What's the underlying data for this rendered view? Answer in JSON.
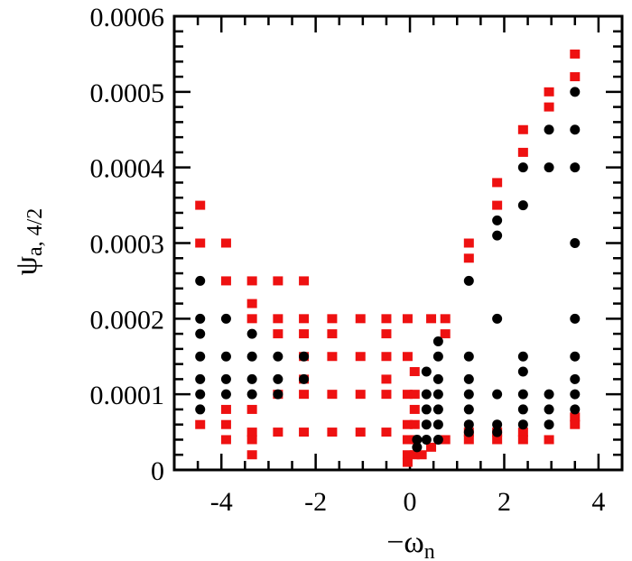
{
  "chart_data": {
    "type": "scatter",
    "xlabel": "−ω",
    "xlabel_sub": "n",
    "ylabel": "ψ",
    "ylabel_sub": "a, 4/2",
    "xlim": [
      -5,
      4.5
    ],
    "ylim": [
      0,
      0.0006
    ],
    "x_ticks": [
      -4,
      -2,
      0,
      2,
      4
    ],
    "x_tick_labels": [
      "-4",
      "-2",
      "0",
      "2",
      "4"
    ],
    "y_ticks": [
      0,
      0.0001,
      0.0002,
      0.0003,
      0.0004,
      0.0005,
      0.0006
    ],
    "y_tick_labels": [
      "0",
      "0.0001",
      "0.0002",
      "0.0003",
      "0.0004",
      "0.0005",
      "0.0006"
    ],
    "grid": false,
    "series": [
      {
        "marker": "circle",
        "color": "#000000",
        "points": [
          [
            -4.45,
            0.00025
          ],
          [
            -4.45,
            0.0002
          ],
          [
            -4.45,
            0.00018
          ],
          [
            -4.45,
            0.00015
          ],
          [
            -4.45,
            0.00012
          ],
          [
            -4.45,
            0.0001
          ],
          [
            -4.45,
            8e-05
          ],
          [
            -3.9,
            0.0002
          ],
          [
            -3.9,
            0.00015
          ],
          [
            -3.9,
            0.00012
          ],
          [
            -3.9,
            0.0001
          ],
          [
            -3.35,
            0.00018
          ],
          [
            -3.35,
            0.00015
          ],
          [
            -3.35,
            0.00012
          ],
          [
            -3.35,
            0.0001
          ],
          [
            -2.8,
            0.00015
          ],
          [
            -2.8,
            0.00012
          ],
          [
            -2.8,
            0.0001
          ],
          [
            -2.25,
            0.00015
          ],
          [
            -2.25,
            0.00012
          ],
          [
            0.15,
            4e-05
          ],
          [
            0.15,
            3e-05
          ],
          [
            0.35,
            0.00013
          ],
          [
            0.35,
            0.0001
          ],
          [
            0.35,
            8e-05
          ],
          [
            0.35,
            6e-05
          ],
          [
            0.35,
            4e-05
          ],
          [
            0.6,
            0.00017
          ],
          [
            0.6,
            0.00015
          ],
          [
            0.6,
            0.00012
          ],
          [
            0.6,
            0.0001
          ],
          [
            0.6,
            8e-05
          ],
          [
            0.6,
            6e-05
          ],
          [
            0.6,
            4e-05
          ],
          [
            1.25,
            0.00025
          ],
          [
            1.25,
            0.00015
          ],
          [
            1.25,
            0.00012
          ],
          [
            1.25,
            0.0001
          ],
          [
            1.25,
            8e-05
          ],
          [
            1.25,
            6e-05
          ],
          [
            1.25,
            5e-05
          ],
          [
            1.85,
            0.00033
          ],
          [
            1.85,
            0.00031
          ],
          [
            1.85,
            0.0002
          ],
          [
            1.85,
            0.0001
          ],
          [
            1.85,
            6e-05
          ],
          [
            1.85,
            5e-05
          ],
          [
            2.4,
            0.0004
          ],
          [
            2.4,
            0.00035
          ],
          [
            2.4,
            0.00015
          ],
          [
            2.4,
            0.00013
          ],
          [
            2.4,
            0.0001
          ],
          [
            2.4,
            8e-05
          ],
          [
            2.4,
            6e-05
          ],
          [
            2.95,
            0.00045
          ],
          [
            2.95,
            0.0004
          ],
          [
            2.95,
            0.0001
          ],
          [
            2.95,
            8e-05
          ],
          [
            2.95,
            6e-05
          ],
          [
            3.5,
            0.0005
          ],
          [
            3.5,
            0.00045
          ],
          [
            3.5,
            0.0004
          ],
          [
            3.5,
            0.0003
          ],
          [
            3.5,
            0.0002
          ],
          [
            3.5,
            0.00015
          ],
          [
            3.5,
            0.00012
          ],
          [
            3.5,
            0.0001
          ],
          [
            3.5,
            8e-05
          ]
        ]
      },
      {
        "marker": "square",
        "color": "#ee1111",
        "points": [
          [
            -4.45,
            0.00035
          ],
          [
            -4.45,
            0.0003
          ],
          [
            -4.45,
            6e-05
          ],
          [
            -3.9,
            0.0003
          ],
          [
            -3.9,
            0.00025
          ],
          [
            -3.9,
            8e-05
          ],
          [
            -3.9,
            6e-05
          ],
          [
            -3.9,
            4e-05
          ],
          [
            -3.35,
            0.00025
          ],
          [
            -3.35,
            0.00022
          ],
          [
            -3.35,
            0.0002
          ],
          [
            -3.35,
            8e-05
          ],
          [
            -3.35,
            5e-05
          ],
          [
            -3.35,
            4e-05
          ],
          [
            -3.35,
            2e-05
          ],
          [
            -2.8,
            0.00025
          ],
          [
            -2.8,
            0.0002
          ],
          [
            -2.8,
            0.00018
          ],
          [
            -2.8,
            0.0001
          ],
          [
            -2.8,
            5e-05
          ],
          [
            -2.25,
            0.00025
          ],
          [
            -2.25,
            0.0002
          ],
          [
            -2.25,
            0.00018
          ],
          [
            -2.25,
            0.00015
          ],
          [
            -2.25,
            0.00012
          ],
          [
            -2.25,
            0.0001
          ],
          [
            -2.25,
            5e-05
          ],
          [
            -1.65,
            0.0002
          ],
          [
            -1.65,
            0.00018
          ],
          [
            -1.65,
            0.00015
          ],
          [
            -1.65,
            0.0001
          ],
          [
            -1.65,
            5e-05
          ],
          [
            -1.05,
            0.0002
          ],
          [
            -1.05,
            0.00015
          ],
          [
            -1.05,
            0.0001
          ],
          [
            -1.05,
            5e-05
          ],
          [
            -0.5,
            0.0002
          ],
          [
            -0.5,
            0.00018
          ],
          [
            -0.5,
            0.00015
          ],
          [
            -0.5,
            0.00012
          ],
          [
            -0.5,
            0.0001
          ],
          [
            -0.5,
            5e-05
          ],
          [
            -0.05,
            0.0002
          ],
          [
            -0.05,
            0.00015
          ],
          [
            -0.05,
            0.0001
          ],
          [
            -0.05,
            6e-05
          ],
          [
            -0.05,
            4e-05
          ],
          [
            -0.05,
            2e-05
          ],
          [
            -0.05,
            1e-05
          ],
          [
            0.1,
            0.00013
          ],
          [
            0.1,
            0.0001
          ],
          [
            0.1,
            8e-05
          ],
          [
            0.1,
            6e-05
          ],
          [
            0.1,
            4e-05
          ],
          [
            0.1,
            2e-05
          ],
          [
            0.25,
            2e-05
          ],
          [
            0.45,
            0.0002
          ],
          [
            0.45,
            3e-05
          ],
          [
            0.75,
            0.0002
          ],
          [
            0.75,
            0.00018
          ],
          [
            0.75,
            4e-05
          ],
          [
            1.25,
            0.0003
          ],
          [
            1.25,
            0.00028
          ],
          [
            1.25,
            5e-05
          ],
          [
            1.25,
            4e-05
          ],
          [
            1.85,
            0.00038
          ],
          [
            1.85,
            0.00035
          ],
          [
            1.85,
            5e-05
          ],
          [
            1.85,
            4e-05
          ],
          [
            2.4,
            0.00045
          ],
          [
            2.4,
            0.00042
          ],
          [
            2.4,
            5e-05
          ],
          [
            2.4,
            4e-05
          ],
          [
            2.95,
            0.0005
          ],
          [
            2.95,
            0.00048
          ],
          [
            2.95,
            4e-05
          ],
          [
            3.5,
            0.00055
          ],
          [
            3.5,
            0.00052
          ],
          [
            3.5,
            7e-05
          ],
          [
            3.5,
            6e-05
          ]
        ]
      }
    ]
  }
}
